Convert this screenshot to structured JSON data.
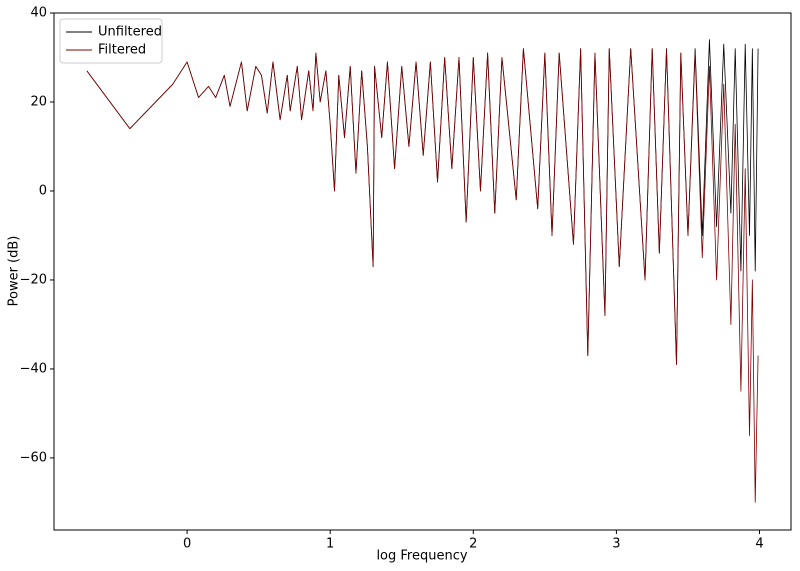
{
  "chart_data": {
    "type": "line",
    "xlabel": "log Frequency",
    "ylabel": "Power (dB)",
    "x": [
      -0.7,
      -0.4,
      -0.1,
      0,
      0.08,
      0.15,
      0.2,
      0.26,
      0.3,
      0.38,
      0.42,
      0.48,
      0.52,
      0.56,
      0.6,
      0.65,
      0.7,
      0.72,
      0.77,
      0.8,
      0.85,
      0.88,
      0.9,
      0.93,
      0.97,
      1.0,
      1.03,
      1.06,
      1.1,
      1.14,
      1.18,
      1.22,
      1.26,
      1.3,
      1.31,
      1.36,
      1.4,
      1.45,
      1.5,
      1.55,
      1.6,
      1.65,
      1.7,
      1.75,
      1.8,
      1.85,
      1.9,
      1.95,
      2.0,
      2.05,
      2.1,
      2.15,
      2.2,
      2.3,
      2.35,
      2.45,
      2.5,
      2.55,
      2.6,
      2.7,
      2.75,
      2.8,
      2.85,
      2.92,
      2.95,
      3.02,
      3.1,
      3.2,
      3.25,
      3.3,
      3.35,
      3.42,
      3.45,
      3.5,
      3.55,
      3.6,
      3.65,
      3.7,
      3.75,
      3.8,
      3.83,
      3.87,
      3.9,
      3.93,
      3.95,
      3.97,
      3.99
    ],
    "series": [
      {
        "name": "Unfiltered",
        "color": "#000000",
        "values": [
          27,
          14,
          24,
          29,
          21,
          23.5,
          21,
          26,
          19,
          29,
          18,
          28,
          26,
          17.5,
          29,
          16,
          26,
          18,
          28,
          16,
          27,
          18,
          31,
          20,
          27,
          15,
          0,
          26,
          12,
          28,
          4,
          27,
          10,
          -17,
          28,
          12,
          29,
          5,
          28,
          10,
          29,
          8,
          29,
          2,
          30,
          5,
          30,
          -7,
          30,
          0,
          31,
          -5,
          30,
          -2,
          32,
          -4,
          31,
          -10,
          31,
          -12,
          32,
          -37,
          31,
          -28,
          32,
          -17,
          32,
          -20,
          32,
          -14,
          32,
          -39,
          31,
          -10,
          32,
          -10,
          34,
          -8,
          33,
          -5,
          32,
          -18,
          33,
          -10,
          32,
          -18,
          32
        ]
      },
      {
        "name": "Filtered",
        "color": "#800000",
        "values": [
          27,
          14,
          24,
          29,
          21,
          23.5,
          21,
          26,
          19,
          29,
          18,
          28,
          26,
          17.5,
          29,
          16,
          26,
          18,
          28,
          16,
          27,
          18,
          31,
          20,
          27,
          15,
          0,
          26,
          12,
          28,
          4,
          27,
          10,
          -17,
          28,
          12,
          29,
          5,
          28,
          10,
          29,
          8,
          29,
          2,
          30,
          5,
          30,
          -7,
          30,
          0,
          31,
          -5,
          30,
          -2,
          32,
          -4,
          31,
          -10,
          31,
          -12,
          32,
          -37,
          31,
          -28,
          32,
          -17,
          32,
          -20,
          32,
          -14,
          32,
          -39,
          31,
          -10,
          31,
          -15,
          28,
          -20,
          24,
          -30,
          15,
          -45,
          5,
          -55,
          -20,
          -70,
          -37
        ]
      }
    ],
    "xlim": [
      -0.93,
      4.22
    ],
    "xticks": [
      0,
      1,
      2,
      3,
      4
    ],
    "ylim": [
      -76.2,
      40
    ],
    "yticks": [
      {
        "value": -60,
        "label": "−60"
      },
      {
        "value": -40,
        "label": "−40"
      },
      {
        "value": -20,
        "label": "−20"
      },
      0,
      20,
      40
    ],
    "legend": "upper left"
  }
}
